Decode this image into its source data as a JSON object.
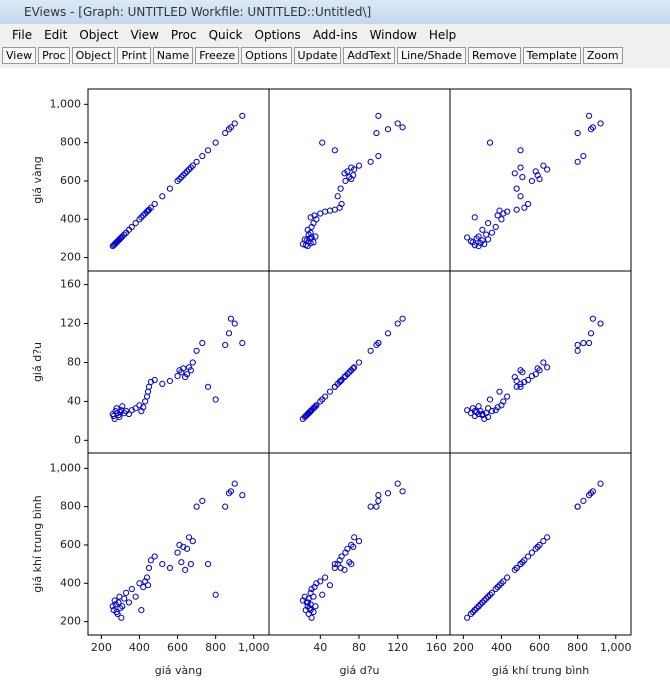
{
  "window": {
    "title": "EViews - [Graph: UNTITLED   Workfile: UNTITLED::Untitled\\]",
    "menu": [
      "File",
      "Edit",
      "Object",
      "View",
      "Proc",
      "Quick",
      "Options",
      "Add-ins",
      "Window",
      "Help"
    ],
    "toolbar": [
      "View",
      "Proc",
      "Object",
      "Print",
      "Name",
      "Freeze",
      "Options",
      "Update",
      "AddText",
      "Line/Shade",
      "Remove",
      "Template",
      "Zoom"
    ]
  },
  "chart_data": {
    "type": "scatter_matrix",
    "color": "#0000cc",
    "variables": [
      {
        "name": "giá vàng",
        "lim": [
          130,
          1080
        ],
        "xticks": [
          200,
          400,
          600,
          800,
          {
            "value": 1000,
            "label": "1,000"
          }
        ],
        "yticks": [
          200,
          400,
          600,
          800,
          {
            "value": 1000,
            "label": "1,000"
          }
        ],
        "values": [
          260,
          265,
          270,
          275,
          280,
          285,
          290,
          295,
          300,
          305,
          310,
          320,
          330,
          345,
          360,
          380,
          400,
          410,
          420,
          430,
          440,
          445,
          450,
          460,
          480,
          520,
          560,
          600,
          610,
          620,
          630,
          640,
          650,
          660,
          670,
          680,
          700,
          730,
          760,
          800,
          850,
          870,
          880,
          900,
          940
        ]
      },
      {
        "name": "giá d?u",
        "lim": [
          -13,
          174
        ],
        "xticks": [
          40,
          80,
          120,
          160
        ],
        "yticks": [
          0,
          40,
          80,
          120,
          160
        ],
        "values": [
          27,
          25,
          22,
          30,
          33,
          28,
          26,
          24,
          29,
          31,
          35,
          28,
          30,
          27,
          31,
          33,
          36,
          30,
          34,
          40,
          45,
          50,
          55,
          60,
          62,
          58,
          61,
          66,
          72,
          70,
          74,
          65,
          68,
          75,
          72,
          80,
          92,
          100,
          55,
          42,
          98,
          110,
          125,
          120,
          100
        ]
      },
      {
        "name": "giá khí trung bình",
        "lim": [
          130,
          1080
        ],
        "xticks": [
          200,
          400,
          600,
          800,
          {
            "value": 1000,
            "label": "1,000"
          }
        ],
        "yticks": [
          200,
          400,
          600,
          800,
          {
            "value": 1000,
            "label": "1,000"
          }
        ],
        "values": [
          280,
          260,
          310,
          290,
          250,
          240,
          300,
          330,
          270,
          220,
          280,
          320,
          350,
          300,
          370,
          330,
          400,
          260,
          380,
          410,
          430,
          390,
          480,
          520,
          540,
          500,
          480,
          560,
          600,
          510,
          590,
          470,
          580,
          640,
          500,
          620,
          800,
          830,
          500,
          340,
          800,
          870,
          880,
          920,
          860
        ]
      }
    ]
  }
}
